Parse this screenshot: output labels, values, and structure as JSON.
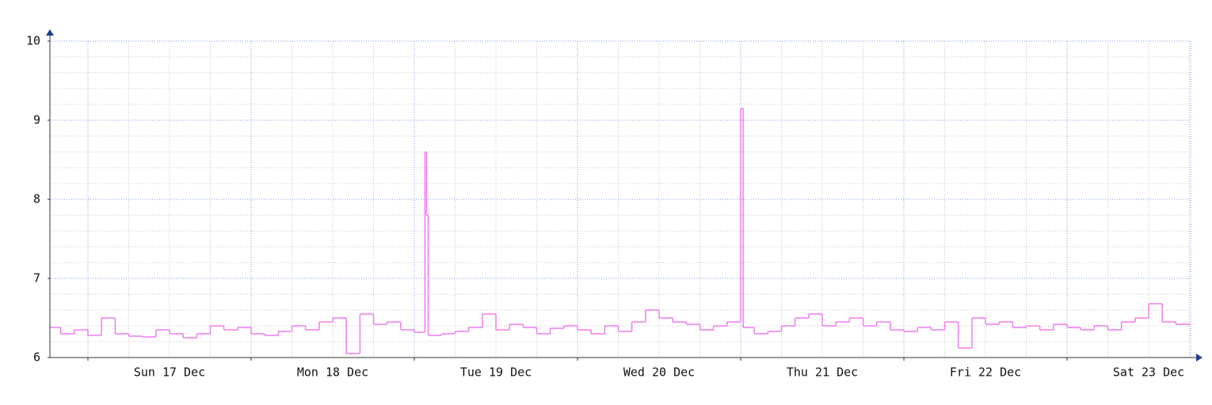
{
  "chart_data": {
    "type": "line",
    "step": true,
    "grid": true,
    "x": [
      16.75,
      16.833,
      16.917,
      17,
      17.083,
      17.167,
      17.25,
      17.333,
      17.417,
      17.5,
      17.583,
      17.667,
      17.75,
      17.833,
      17.917,
      18,
      18.083,
      18.167,
      18.25,
      18.333,
      18.417,
      18.5,
      18.583,
      18.667,
      18.75,
      18.833,
      18.917,
      19,
      19.065,
      19.075,
      19.085,
      19.167,
      19.25,
      19.333,
      19.417,
      19.5,
      19.583,
      19.667,
      19.75,
      19.833,
      19.917,
      20,
      20.083,
      20.167,
      20.25,
      20.333,
      20.417,
      20.5,
      20.583,
      20.667,
      20.75,
      20.833,
      20.917,
      21,
      21.015,
      21.083,
      21.167,
      21.25,
      21.333,
      21.417,
      21.5,
      21.583,
      21.667,
      21.75,
      21.833,
      21.917,
      22,
      22.083,
      22.167,
      22.25,
      22.333,
      22.417,
      22.5,
      22.583,
      22.667,
      22.75,
      22.833,
      22.917,
      23,
      23.083,
      23.167,
      23.25,
      23.333,
      23.417,
      23.5,
      23.583,
      23.667
    ],
    "series": [
      {
        "color": "#ee7cf0",
        "values": [
          6.38,
          6.3,
          6.35,
          6.28,
          6.5,
          6.3,
          6.27,
          6.26,
          6.35,
          6.3,
          6.25,
          6.3,
          6.4,
          6.35,
          6.38,
          6.3,
          6.28,
          6.33,
          6.4,
          6.35,
          6.45,
          6.5,
          6.05,
          6.55,
          6.42,
          6.45,
          6.35,
          6.32,
          8.6,
          7.8,
          6.28,
          6.3,
          6.33,
          6.38,
          6.55,
          6.35,
          6.42,
          6.38,
          6.3,
          6.37,
          6.4,
          6.35,
          6.3,
          6.4,
          6.33,
          6.45,
          6.6,
          6.5,
          6.45,
          6.42,
          6.35,
          6.4,
          6.45,
          9.15,
          6.38,
          6.3,
          6.33,
          6.4,
          6.5,
          6.55,
          6.4,
          6.45,
          6.5,
          6.4,
          6.45,
          6.35,
          6.33,
          6.38,
          6.35,
          6.45,
          6.12,
          6.5,
          6.42,
          6.45,
          6.38,
          6.4,
          6.35,
          6.42,
          6.38,
          6.35,
          6.4,
          6.35,
          6.45,
          6.5,
          6.68,
          6.45,
          6.42
        ]
      }
    ],
    "xlim": [
      16.767,
      23.757
    ],
    "xticks": [
      {
        "value": 17.5,
        "label": "Sun 17 Dec"
      },
      {
        "value": 18.5,
        "label": "Mon 18 Dec"
      },
      {
        "value": 19.5,
        "label": "Tue 19 Dec"
      },
      {
        "value": 20.5,
        "label": "Wed 20 Dec"
      },
      {
        "value": 21.5,
        "label": "Thu 21 Dec"
      },
      {
        "value": 22.5,
        "label": "Fri 22 Dec"
      },
      {
        "value": 23.5,
        "label": "Sat 23 Dec"
      }
    ],
    "ylim": [
      6,
      10
    ],
    "yticks": [
      6,
      7,
      8,
      9,
      10
    ]
  }
}
